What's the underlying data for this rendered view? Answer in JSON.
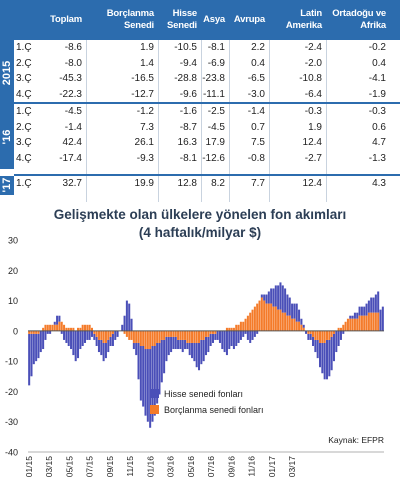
{
  "table": {
    "headers": [
      "Toplam",
      "Borçlanma Senedi",
      "Hisse Senedi",
      "Asya",
      "Avrupa",
      "Latin Amerika",
      "Ortadoğu ve Afrika"
    ],
    "groups": [
      {
        "year": "2015",
        "rows": [
          {
            "q": "1.Ç",
            "values": [
              "-8.6",
              "1.9",
              "-10.5",
              "-8.1",
              "2.2",
              "-2.4",
              "-0.2"
            ]
          },
          {
            "q": "2.Ç",
            "values": [
              "-8.0",
              "1.4",
              "-9.4",
              "-6.9",
              "0.4",
              "-2.0",
              "0.4"
            ]
          },
          {
            "q": "3.Ç",
            "values": [
              "-45.3",
              "-16.5",
              "-28.8",
              "-23.8",
              "-6.5",
              "-10.8",
              "-4.1"
            ]
          },
          {
            "q": "4.Ç",
            "values": [
              "-22.3",
              "-12.7",
              "-9.6",
              "-11.1",
              "-3.0",
              "-6.4",
              "-1.9"
            ]
          }
        ]
      },
      {
        "year": "'16",
        "rows": [
          {
            "q": "1.Ç",
            "values": [
              "-4.5",
              "-1.2",
              "-1.6",
              "-2.5",
              "-1.4",
              "-0.3",
              "-0.3"
            ]
          },
          {
            "q": "2.Ç",
            "values": [
              "-1.4",
              "7.3",
              "-8.7",
              "-4.5",
              "0.7",
              "1.9",
              "0.6"
            ]
          },
          {
            "q": "3.Ç",
            "values": [
              "42.4",
              "26.1",
              "16.3",
              "17.9",
              "7.5",
              "12.4",
              "4.7"
            ]
          },
          {
            "q": "4.Ç",
            "values": [
              "-17.4",
              "-9.3",
              "-8.1",
              "-12.6",
              "-0.8",
              "-2.7",
              "-1.3"
            ]
          }
        ]
      },
      {
        "year": "'17",
        "rows": [
          {
            "q": "1.Ç",
            "values": [
              "32.7",
              "19.9",
              "12.8",
              "8.2",
              "7.7",
              "12.4",
              "4.3"
            ]
          }
        ]
      }
    ]
  },
  "chart_data": {
    "type": "bar",
    "stacked": true,
    "title": "Gelişmekte olan ülkelere yönelen fon akımları",
    "subtitle": "(4 haftalık/milyar $)",
    "xlabel": "",
    "ylabel": "",
    "ylim": [
      -40,
      30
    ],
    "yticks": [
      -40,
      -30,
      -20,
      -10,
      0,
      10,
      20,
      30
    ],
    "xtick_labels": [
      "01/15",
      "03/15",
      "05/15",
      "07/15",
      "09/15",
      "11/15",
      "01/16",
      "03/16",
      "05/16",
      "07/16",
      "09/16",
      "11/16",
      "01/17",
      "03/17"
    ],
    "x_first_tick_index": 0,
    "x_tick_step": 8.7,
    "grid": false,
    "legend_position": "bottom-center",
    "source": "Kaynak: EFPR",
    "series": [
      {
        "name": "Hisse senedi fonları",
        "color": "#4a4fb8",
        "values": [
          -17,
          -14,
          -10,
          -9,
          -8,
          -7,
          -6,
          -3,
          -1,
          -1,
          0,
          1,
          3,
          2,
          -1,
          -3,
          -4,
          -5,
          -6,
          -8,
          -10,
          -9,
          -6,
          -5,
          -4,
          -3,
          -3,
          -2,
          -2,
          -3,
          -4,
          -5,
          -6,
          -5,
          -4,
          -3,
          -4,
          -3,
          -2,
          0,
          2,
          5,
          10,
          9,
          4,
          -2,
          -4,
          -12,
          -18,
          -20,
          -22,
          -24,
          -26,
          -25,
          -23,
          -20,
          -17,
          -14,
          -11,
          -8,
          -6,
          -5,
          -4,
          -4,
          -3,
          -3,
          -4,
          -3,
          -2,
          -4,
          -5,
          -6,
          -8,
          -9,
          -8,
          -7,
          -6,
          -5,
          -4,
          -3,
          -2,
          -3,
          -4,
          -6,
          -7,
          -8,
          -6,
          -5,
          -6,
          -5,
          -4,
          -3,
          -2,
          -1,
          -3,
          -4,
          -3,
          -2,
          -1,
          0,
          1,
          2,
          3,
          4,
          5,
          6,
          7,
          8,
          9,
          9,
          8,
          7,
          6,
          5,
          5,
          6,
          4,
          2,
          1,
          -1,
          -2,
          -2,
          -3,
          -4,
          -6,
          -8,
          -10,
          -12,
          -13,
          -12,
          -11,
          -9,
          -7,
          -5,
          -3,
          -1,
          0,
          0,
          1,
          1,
          2,
          2,
          3,
          3,
          3,
          4,
          4,
          5,
          5,
          6,
          7,
          7,
          8
        ]
      },
      {
        "name": "Borçlanma senedi fonları",
        "color": "#f47b2a",
        "values": [
          -1,
          -1,
          -1,
          -1,
          -1,
          0,
          1,
          2,
          2,
          2,
          2,
          2,
          2,
          3,
          3,
          2,
          1,
          1,
          1,
          1,
          0,
          1,
          1,
          2,
          2,
          2,
          2,
          1,
          -1,
          -2,
          -3,
          -3,
          -4,
          -4,
          -3,
          -2,
          -1,
          0,
          0,
          0,
          0,
          -1,
          -2,
          -3,
          -3,
          -4,
          -4,
          -4,
          -5,
          -5,
          -6,
          -6,
          -6,
          -5,
          -5,
          -4,
          -4,
          -3,
          -3,
          -2,
          -2,
          -2,
          -2,
          -2,
          -3,
          -3,
          -3,
          -3,
          -4,
          -4,
          -4,
          -4,
          -4,
          -4,
          -3,
          -3,
          -2,
          -2,
          -1,
          -1,
          -1,
          0,
          0,
          0,
          0,
          1,
          1,
          1,
          1,
          2,
          2,
          3,
          3,
          4,
          5,
          6,
          7,
          8,
          9,
          10,
          11,
          10,
          9,
          9,
          9,
          8,
          8,
          7,
          7,
          6,
          6,
          5,
          5,
          4,
          4,
          3,
          3,
          2,
          1,
          0,
          -1,
          -1,
          -2,
          -3,
          -3,
          -4,
          -4,
          -4,
          -3,
          -3,
          -2,
          -1,
          0,
          1,
          1,
          2,
          3,
          4,
          4,
          4,
          4,
          4,
          5,
          5,
          5,
          5,
          6,
          6,
          6,
          6,
          6
        ]
      }
    ]
  }
}
